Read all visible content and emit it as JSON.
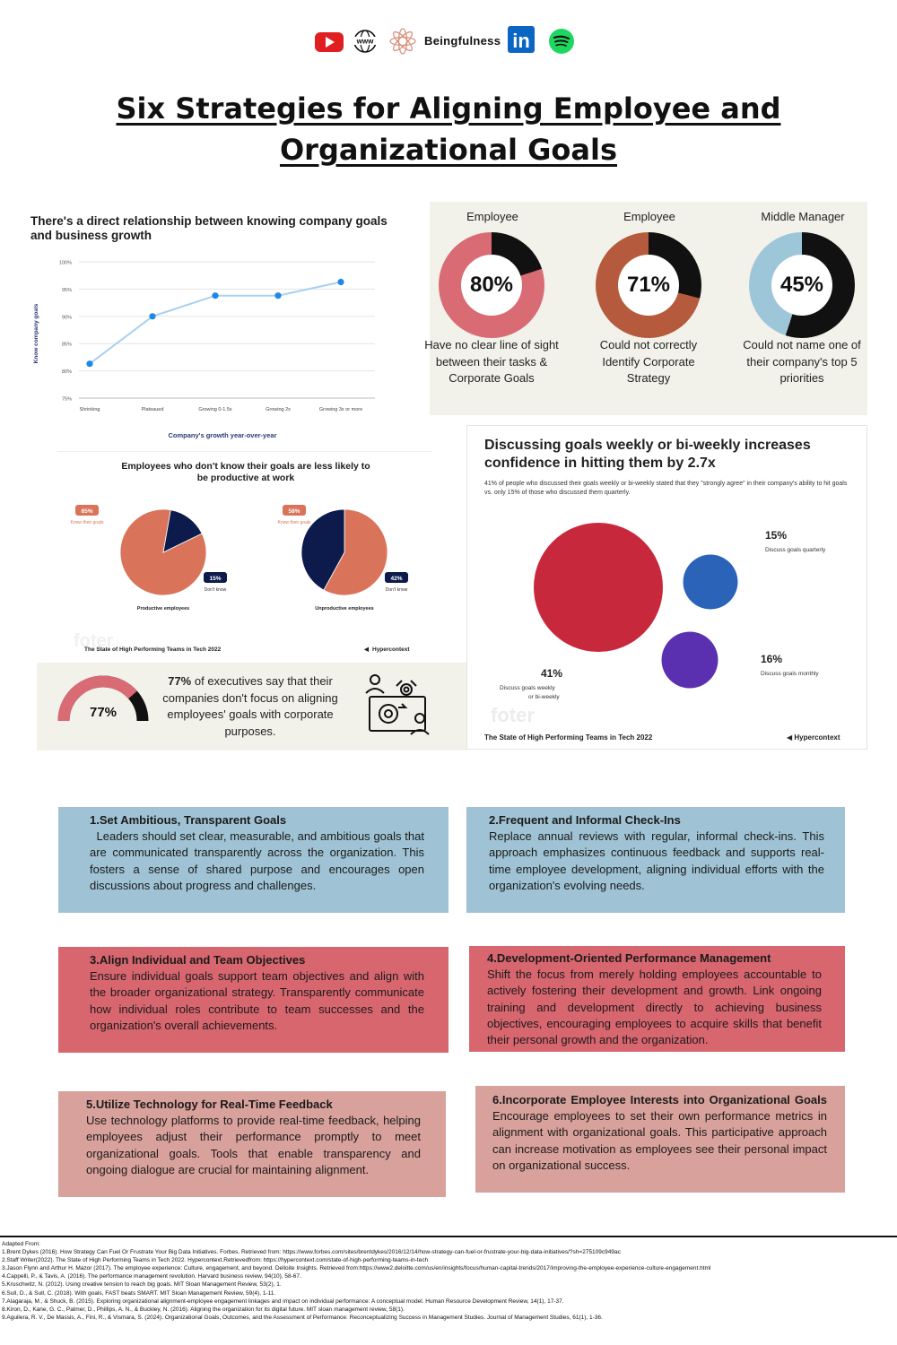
{
  "header": {
    "brand_name": "Beingfulness",
    "icons": [
      "youtube-icon",
      "www-globe-icon",
      "lotus-logo-icon",
      "linkedin-icon",
      "spotify-icon"
    ],
    "www_label": "www",
    "linkedin_label": "in"
  },
  "title": {
    "line1": "Six Strategies for Aligning Employee and",
    "line2": "Organizational Goals"
  },
  "line_chart": {
    "title": "There's a direct relationship between knowing company goals and business growth",
    "chart_data": {
      "type": "line",
      "title": "There's a direct relationship between knowing company goals and business growth",
      "categories": [
        "Shrinking",
        "Plateaued",
        "Growing 0-1.5x",
        "Growing 2x",
        "Growing 3x or more"
      ],
      "values": [
        81.3,
        90,
        93.8,
        93.8,
        96.3
      ],
      "xlabel": "Company's growth year-over-year",
      "ylabel": "Know company goals",
      "ylim": [
        75,
        100
      ],
      "yticks": [
        75,
        80,
        85,
        90,
        95,
        100
      ],
      "ytick_labels": [
        "75%",
        "80%",
        "85%",
        "90%",
        "95%",
        "100%"
      ],
      "grid": true,
      "color": "#1e88e5"
    }
  },
  "donuts": [
    {
      "heading": "Employee",
      "value": 80,
      "label": "80%",
      "description": "Have no clear line of sight between their tasks & Corporate Goals",
      "color": "#d96b75"
    },
    {
      "heading": "Employee",
      "value": 71,
      "label": "71%",
      "description": "Could not correctly Identify Corporate Strategy",
      "color": "#b65a3e"
    },
    {
      "heading": "Middle Manager",
      "value": 45,
      "label": "45%",
      "description": "Could not name one of their company's top 5 priorities",
      "color": "#9ec6d9"
    }
  ],
  "pie_panel": {
    "title": "Employees who don't know their goals are less likely to be productive at work",
    "source": "The State of High Performing Teams in Tech 2022",
    "logo": "Hypercontext",
    "watermark": "foter",
    "chart_data": [
      {
        "type": "pie",
        "title": "Productive employees",
        "categories": [
          "Know their goals",
          "Don't know"
        ],
        "values": [
          85,
          15
        ],
        "labels": [
          "85%",
          "15%"
        ],
        "colors": [
          "#d9735a",
          "#0d1b4c"
        ]
      },
      {
        "type": "pie",
        "title": "Unproductive employees",
        "categories": [
          "Know their goals",
          "Don't know"
        ],
        "values": [
          58,
          42
        ],
        "labels": [
          "58%",
          "42%"
        ],
        "colors": [
          "#d9735a",
          "#0d1b4c"
        ]
      }
    ]
  },
  "bubble_panel": {
    "title": "Discussing goals weekly or bi-weekly increases confidence in hitting them by 2.7x",
    "subtitle": "41% of people who discussed their goals weekly or bi-weekly stated that they \"strongly agree\" in their company's ability to hit goals vs. only 15% of those who discussed them quarterly.",
    "source": "The State of High Performing Teams in Tech 2022",
    "logo": "Hypercontext",
    "watermark": "foter",
    "chart_data": {
      "type": "scatter",
      "title": "Discussing goals weekly or bi-weekly increases confidence in hitting them by 2.7x",
      "categories": [
        "Discuss goals weekly or bi-weekly",
        "Discuss goals quarterly",
        "Discuss goals monthly"
      ],
      "values": [
        41,
        15,
        16
      ],
      "labels": [
        "41%",
        "15%",
        "16%"
      ],
      "colors": [
        "#c8283c",
        "#2b63b8",
        "#5a30b0"
      ]
    }
  },
  "exec_panel": {
    "gauge_value": 77,
    "gauge_label": "77%",
    "text_bold": "77%",
    "text_rest": " of executives say that their companies don't focus on aligning employees' goals with corporate purposes.",
    "icon": "people-gears-icon"
  },
  "strategies": [
    {
      "title": "1.Set Ambitious, Transparent Goals",
      "body": "  Leaders should set clear, measurable, and ambitious goals that are communicated transparently across the organization. This fosters a sense of shared purpose and encourages open discussions about progress and challenges.",
      "color": "#9fc3d4"
    },
    {
      "title": "2.Frequent and Informal Check-Ins",
      "body": "Replace annual reviews with regular, informal check-ins. This approach emphasizes continuous feedback and supports real-time employee development, aligning individual efforts with the organization's evolving needs.",
      "color": "#9fc3d4"
    },
    {
      "title": "3.Align Individual and Team Objectives",
      "body": "Ensure individual goals support team objectives and align with the broader organizational strategy. Transparently communicate how individual roles contribute to team successes and the organization's overall achievements.",
      "color": "#d8666f"
    },
    {
      "title": "4.Development-Oriented Performance Management",
      "body": "Shift the focus from merely holding employees accountable to actively fostering their development and growth. Link ongoing training and development directly to achieving business objectives, encouraging employees to acquire skills that benefit their personal growth and the organization.",
      "color": "#d8666f"
    },
    {
      "title": "5.Utilize Technology for Real-Time Feedback",
      "body": "Use technology platforms to provide real-time feedback, helping employees adjust their performance promptly to meet organizational goals. Tools that enable transparency and ongoing dialogue are crucial for maintaining alignment.",
      "color": "#d9a19b"
    },
    {
      "title": "6.Incorporate Employee Interests into Organizational Goals",
      "body": "Encourage employees to set their own performance metrics in alignment with organizational goals. This participative approach can increase motivation as employees see their personal impact on organizational success.",
      "color": "#d9a19b"
    }
  ],
  "references": {
    "heading": "Adapted From:",
    "items": [
      "1.Brent Dykes (2016). How Strategy Can Fuel Or Frustrate Your Big Data Initiatives. Forbes. Retrieved from: https://www.forbes.com/sites/brentdykes/2016/12/14/how-strategy-can-fuel-or-frustrate-your-big-data-initiatives/?sh=275109c949ac",
      "2.Staff Writer(2022). The State of High Performing Teams in Tech 2022. Hypercontext.Retrievedfrom: https://hypercontext.com/state-of-high-performing-teams-in-tech",
      "3.Jason Flynn and Arthur H. Mazor (2017). The employee experience: Culture, engagement, and beyond. Delloite Insights. Retrieved from:https://www2.deloitte.com/us/en/insights/focus/human-capital-trends/2017/improving-the-employee-experience-culture-engagement.html",
      "4.Cappelli, P., & Tavis, A. (2016). The performance management revolution. Harvard business review, 94(10), 58-67.",
      "5.Kruschwitz, N. (2012). Using creative tension to reach big goals. MIT Sloan Management Review, 53(2), 1.",
      "6.Sull, D., & Sull, C. (2018). With goals, FAST beats SMART. MIT Sloan Management Review, 59(4), 1-11.",
      "7.Alagaraja, M., & Shuck, B. (2015). Exploring organizational alignment-employee engagement linkages and impact on individual performance: A conceptual model. Human Resource Development Review, 14(1), 17-37.",
      "8.Kiron, D., Kane, G. C., Palmer, D., Phillips, A. N., & Buckley, N. (2016). Aligning the organization for its digital future. MIT sloan management review, 58(1).",
      "9.Aguilera, R. V., De Massis, A., Fini, R., & Vismara, S. (2024). Organizational Goals, Outcomes, and the Assessment of Performance: Reconceptualizing Success in Management Studies. Journal of Management Studies, 61(1), 1-36."
    ]
  }
}
